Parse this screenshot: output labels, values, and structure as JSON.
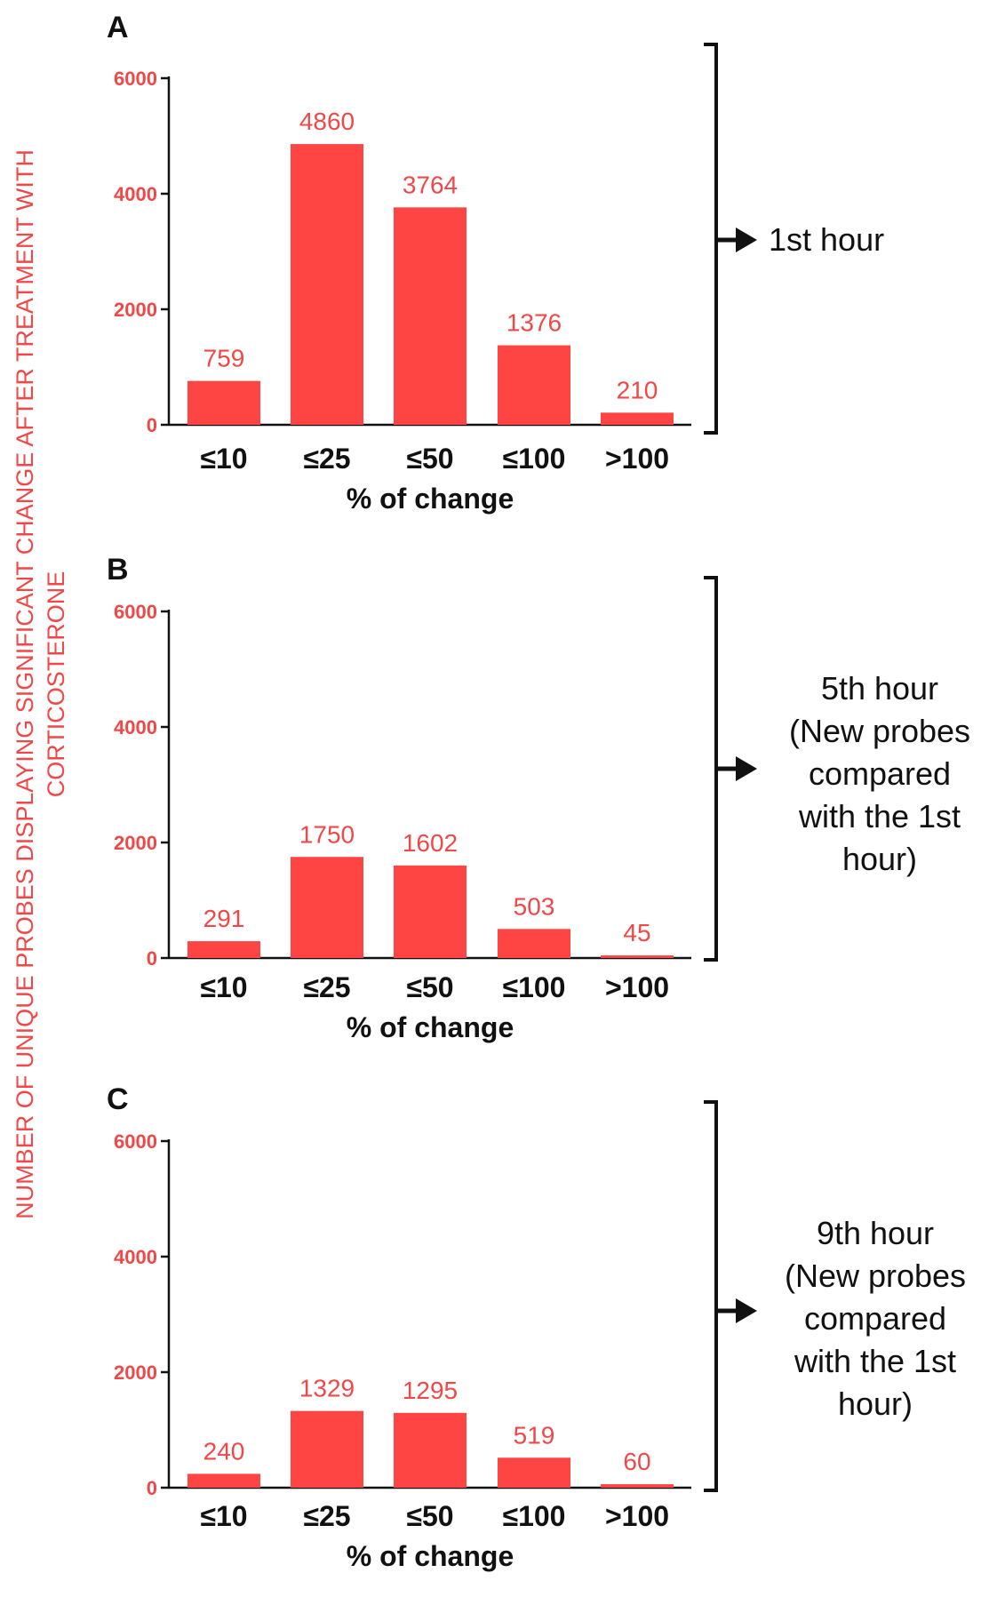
{
  "figure": {
    "ylabel_lines": [
      "NUMBER OF UNIQUE PROBES DISPLAYING SIGNIFICANT CHANGE AFTER TREATMENT WITH",
      "CORTICOSTERONE"
    ]
  },
  "colors": {
    "bar": "#ff4444",
    "accent_text": "#f04848",
    "ink": "#111111"
  },
  "chart_data": [
    {
      "type": "bar",
      "panel": "A",
      "categories": [
        "≤10",
        "≤25",
        "≤50",
        "≤100",
        ">100"
      ],
      "values": [
        759,
        4860,
        3764,
        1376,
        210
      ],
      "value_labels": [
        "759",
        "4860",
        "3764",
        "1376",
        "210"
      ],
      "ylim": [
        0,
        6000
      ],
      "yticks": [
        0,
        2000,
        4000,
        6000
      ],
      "ytick_labels": [
        "0",
        "2000",
        "4000",
        "6000"
      ],
      "xlabel": "% of change",
      "note_lines": [
        "1st hour"
      ]
    },
    {
      "type": "bar",
      "panel": "B",
      "categories": [
        "≤10",
        "≤25",
        "≤50",
        "≤100",
        ">100"
      ],
      "values": [
        291,
        1750,
        1602,
        503,
        45
      ],
      "value_labels": [
        "291",
        "1750",
        "1602",
        "503",
        "45"
      ],
      "ylim": [
        0,
        6000
      ],
      "yticks": [
        0,
        2000,
        4000,
        6000
      ],
      "ytick_labels": [
        "0",
        "2000",
        "4000",
        "6000"
      ],
      "xlabel": "% of change",
      "note_lines": [
        "5th hour",
        "(New probes",
        "compared",
        "with the 1st",
        "hour)"
      ]
    },
    {
      "type": "bar",
      "panel": "C",
      "categories": [
        "≤10",
        "≤25",
        "≤50",
        "≤100",
        ">100"
      ],
      "values": [
        240,
        1329,
        1295,
        519,
        60
      ],
      "value_labels": [
        "240",
        "1329",
        "1295",
        "519",
        "60"
      ],
      "ylim": [
        0,
        6000
      ],
      "yticks": [
        0,
        2000,
        4000,
        6000
      ],
      "ytick_labels": [
        "0",
        "2000",
        "4000",
        "6000"
      ],
      "xlabel": "% of change",
      "note_lines": [
        "9th hour",
        "(New probes",
        "compared",
        "with the 1st",
        "hour)"
      ]
    }
  ]
}
